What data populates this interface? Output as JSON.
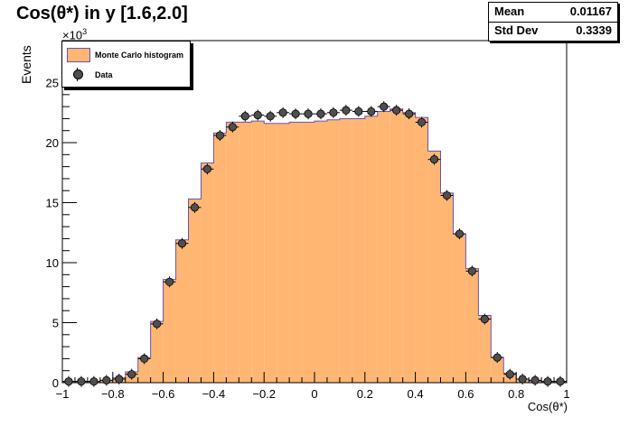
{
  "title": "Cos(θ*) in y [1.6,2.0]",
  "stats": {
    "rows": [
      {
        "label": "Mean",
        "value": "0.01167"
      },
      {
        "label": "Std Dev",
        "value": "0.3339"
      }
    ]
  },
  "legend": {
    "items": [
      {
        "label": "Monte Carlo histogram"
      },
      {
        "label": "Data"
      }
    ]
  },
  "colors": {
    "mc_fill": "#ffb673",
    "mc_line": "#6a52b3",
    "data_marker": "#4f4f4f"
  },
  "chart_data": {
    "type": "bar",
    "xlabel": "Cos(θ*)",
    "ylabel": "Events",
    "y_multiplier": "×10",
    "y_multiplier_exp": "3",
    "xlim": [
      -1,
      1
    ],
    "ylim": [
      0,
      28.5
    ],
    "xticks": [
      "−1",
      "−0.8",
      "−0.6",
      "−0.4",
      "−0.2",
      "0",
      "0.2",
      "0.4",
      "0.6",
      "0.8",
      "1"
    ],
    "yticks": [
      "0",
      "5",
      "10",
      "15",
      "20",
      "25"
    ],
    "bin_edges": [
      -1.0,
      -0.95,
      -0.9,
      -0.85,
      -0.8,
      -0.75,
      -0.7,
      -0.65,
      -0.6,
      -0.55,
      -0.5,
      -0.45,
      -0.4,
      -0.35,
      -0.3,
      -0.25,
      -0.2,
      -0.15,
      -0.1,
      -0.05,
      0.0,
      0.05,
      0.1,
      0.15,
      0.2,
      0.25,
      0.3,
      0.35,
      0.4,
      0.45,
      0.5,
      0.55,
      0.6,
      0.65,
      0.7,
      0.75,
      0.8,
      0.85,
      0.9,
      0.95,
      1.0
    ],
    "series": [
      {
        "name": "Monte Carlo histogram",
        "values": [
          0.1,
          0.1,
          0.1,
          0.2,
          0.4,
          0.9,
          2.1,
          5.1,
          8.6,
          11.9,
          15.3,
          18.3,
          20.8,
          21.7,
          21.7,
          21.8,
          21.6,
          21.6,
          21.7,
          21.7,
          21.8,
          21.9,
          22.0,
          22.0,
          22.2,
          22.6,
          22.8,
          22.5,
          22.1,
          19.3,
          15.8,
          12.4,
          9.5,
          5.6,
          2.1,
          0.8,
          0.3,
          0.15,
          0.1,
          0.1
        ]
      },
      {
        "name": "Data",
        "values": [
          0.1,
          0.1,
          0.1,
          0.2,
          0.3,
          0.7,
          2.0,
          4.9,
          8.4,
          11.6,
          14.6,
          17.8,
          20.6,
          21.3,
          22.2,
          22.3,
          22.2,
          22.5,
          22.4,
          22.4,
          22.4,
          22.5,
          22.7,
          22.6,
          22.6,
          23.0,
          22.7,
          22.4,
          21.7,
          18.6,
          15.6,
          12.4,
          9.3,
          5.3,
          2.1,
          0.7,
          0.3,
          0.2,
          0.1,
          0.1
        ]
      }
    ]
  }
}
